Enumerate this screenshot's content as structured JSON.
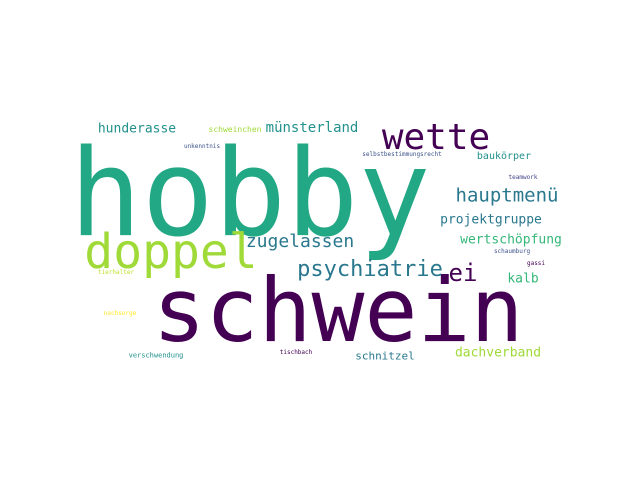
{
  "words": [
    {
      "text": "hobby",
      "color": "#22a884"
    },
    {
      "text": "schwein",
      "color": "#440154"
    },
    {
      "text": "doppel",
      "color": "#a0da39"
    },
    {
      "text": "wette",
      "color": "#440154"
    },
    {
      "text": "psychiatrie",
      "color": "#2a788e"
    },
    {
      "text": "hauptmenü",
      "color": "#2a788e"
    },
    {
      "text": "zugelassen",
      "color": "#2a788e"
    },
    {
      "text": "münsterland",
      "color": "#21918c"
    },
    {
      "text": "hunderasse",
      "color": "#21918c"
    },
    {
      "text": "projektgruppe",
      "color": "#2a788e"
    },
    {
      "text": "wertschöpfung",
      "color": "#35b779"
    },
    {
      "text": "dachverband",
      "color": "#a0da39"
    },
    {
      "text": "kalb",
      "color": "#35b779"
    },
    {
      "text": "schnitzel",
      "color": "#2a788e"
    },
    {
      "text": "schweinchen",
      "color": "#a0da39"
    },
    {
      "text": "baukörper",
      "color": "#21918c"
    },
    {
      "text": "unkenntnis",
      "color": "#3b528b"
    },
    {
      "text": "selbstbestimmungsrecht",
      "color": "#3b528b"
    },
    {
      "text": "teamwork",
      "color": "#414487"
    },
    {
      "text": "schaumburg",
      "color": "#3b528b"
    },
    {
      "text": "gassi",
      "color": "#440154"
    },
    {
      "text": "tierhalter",
      "color": "#bddf26"
    },
    {
      "text": "nachsorge",
      "color": "#fde725"
    },
    {
      "text": "verschwendung",
      "color": "#21918c"
    },
    {
      "text": "tischbach",
      "color": "#440154"
    },
    {
      "text": "ei",
      "color": "#440154"
    }
  ]
}
